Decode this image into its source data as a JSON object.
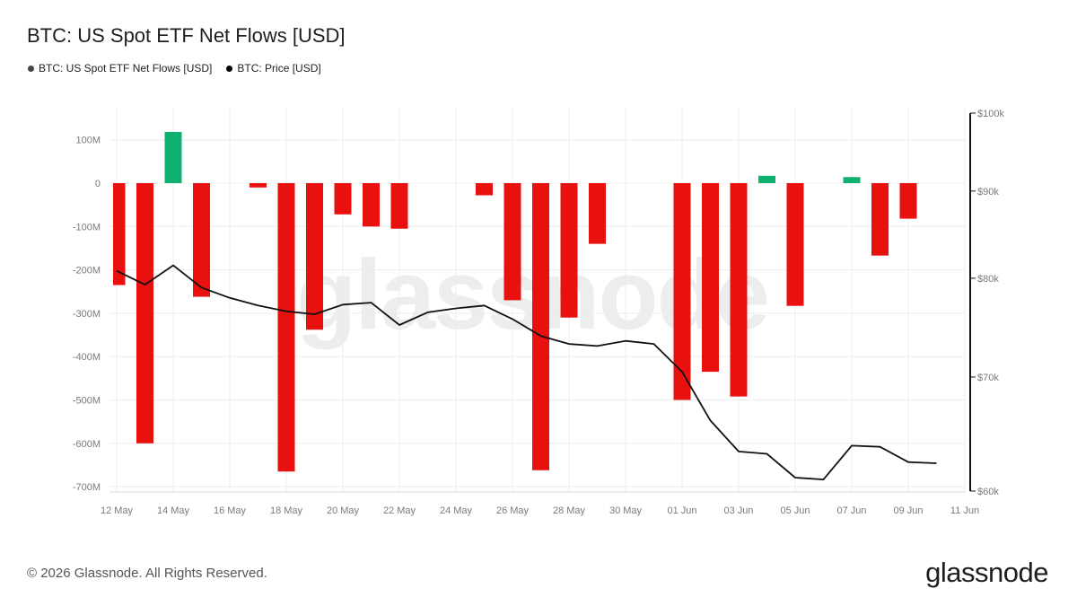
{
  "header": {
    "title": "BTC: US Spot ETF Net Flows [USD]"
  },
  "legend": [
    {
      "label": "BTC: US Spot ETF Net Flows [USD]",
      "color": "#444444"
    },
    {
      "label": "BTC: Price [USD]",
      "color": "#000000"
    }
  ],
  "footer": {
    "copyright": "© 2026 Glassnode. All Rights Reserved.",
    "logo_text": "glassnode",
    "watermark_text": "glassnode"
  },
  "chart_data": {
    "type": "bar",
    "title": "BTC: US Spot ETF Net Flows [USD]",
    "x_tick_labels": [
      "12 May",
      "14 May",
      "16 May",
      "18 May",
      "20 May",
      "22 May",
      "24 May",
      "26 May",
      "28 May",
      "30 May",
      "01 Jun",
      "03 Jun",
      "05 Jun",
      "07 Jun",
      "09 Jun",
      "11 Jun"
    ],
    "y_left": {
      "range": [
        -715,
        120
      ],
      "unit": "M USD",
      "ticks": [
        100,
        0,
        -100,
        -200,
        -300,
        -400,
        -500,
        -600,
        -700
      ],
      "tick_labels": [
        "100M",
        "0",
        "-100M",
        "-200M",
        "-300M",
        "-400M",
        "-500M",
        "-600M",
        "-700M"
      ]
    },
    "y_right": {
      "scale": "log",
      "range": [
        60000,
        100000
      ],
      "ticks": [
        100000,
        90000,
        80000,
        70000,
        60000
      ],
      "tick_labels": [
        "$100k",
        "$90k",
        "$80k",
        "$70k",
        "$60k"
      ]
    },
    "positive_color": "#0fb070",
    "negative_color": "#e8110f",
    "price_color": "#111111",
    "grid": true,
    "series": [
      {
        "name": "BTC: US Spot ETF Net Flows [USD]",
        "type": "bar",
        "x": [
          "12 May",
          "13 May",
          "14 May",
          "15 May",
          "17 May",
          "18 May",
          "19 May",
          "20 May",
          "21 May",
          "22 May",
          "25 May",
          "26 May",
          "27 May",
          "28 May",
          "29 May",
          "01 Jun",
          "02 Jun",
          "03 Jun",
          "04 Jun",
          "05 Jun",
          "07 Jun",
          "08 Jun",
          "09 Jun"
        ],
        "values": [
          -235,
          -600,
          118,
          -262,
          -10,
          -665,
          -338,
          -72,
          -100,
          -105,
          -28,
          -270,
          -662,
          -310,
          -140,
          -500,
          -435,
          -492,
          17,
          -283,
          14,
          -167,
          -82
        ]
      },
      {
        "name": "BTC: Price [USD]",
        "type": "line",
        "x": [
          "12 May",
          "13 May",
          "14 May",
          "15 May",
          "16 May",
          "17 May",
          "18 May",
          "19 May",
          "20 May",
          "21 May",
          "22 May",
          "23 May",
          "24 May",
          "25 May",
          "26 May",
          "27 May",
          "28 May",
          "29 May",
          "30 May",
          "31 May",
          "01 Jun",
          "02 Jun",
          "03 Jun",
          "04 Jun",
          "05 Jun",
          "06 Jun",
          "07 Jun",
          "08 Jun",
          "09 Jun",
          "10 Jun"
        ],
        "values": [
          80800,
          79300,
          81400,
          79000,
          77900,
          77100,
          76500,
          76200,
          77200,
          77400,
          75100,
          76400,
          76800,
          77100,
          75700,
          74000,
          73200,
          73000,
          73500,
          73200,
          70500,
          66000,
          63300,
          63100,
          61100,
          60950,
          63800,
          63700,
          62400,
          62300
        ]
      }
    ]
  }
}
